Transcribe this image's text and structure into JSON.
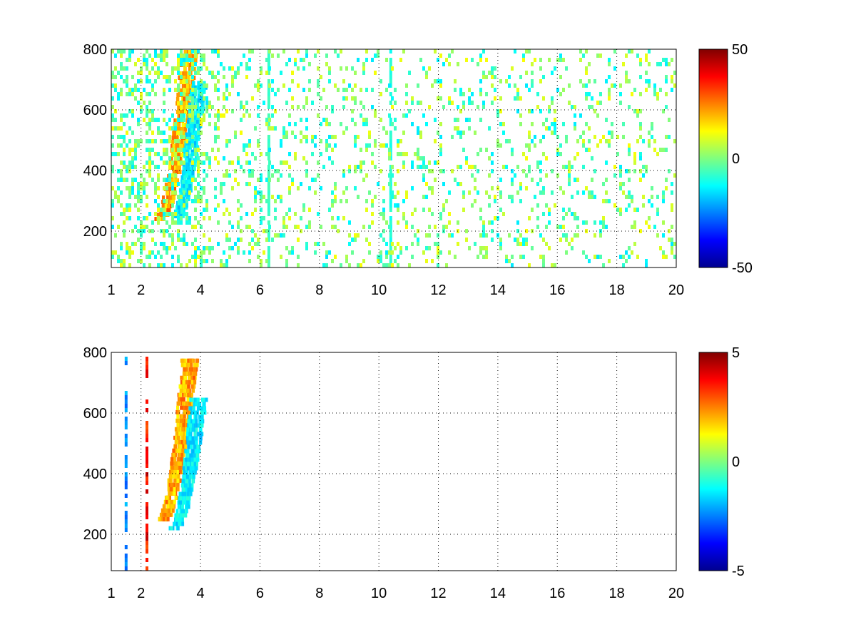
{
  "chart_data": [
    {
      "type": "heatmap",
      "title": "",
      "xlabel": "",
      "ylabel": "",
      "x_ticks": [
        1,
        2,
        4,
        6,
        8,
        10,
        12,
        14,
        16,
        18,
        20
      ],
      "y_ticks": [
        200,
        400,
        600,
        800
      ],
      "xlim": [
        1,
        20
      ],
      "ylim": [
        80,
        800
      ],
      "grid": true,
      "colormap": "jet",
      "colorbar": {
        "min": -50,
        "max": 50,
        "ticks": [
          50,
          0,
          -50
        ]
      },
      "features": [
        {
          "kind": "ridge",
          "x_from": 2.6,
          "x_to": 3.6,
          "y_from": 240,
          "y_to": 800,
          "value": 30
        },
        {
          "kind": "ridge",
          "x_from": 3.2,
          "x_to": 3.9,
          "y_from": 250,
          "y_to": 700,
          "value": -20
        },
        {
          "kind": "stripe",
          "x": 10.4,
          "value": -12
        },
        {
          "kind": "stripe",
          "x": 6.3,
          "value": -8
        },
        {
          "kind": "scatter_noise",
          "x_from": 1,
          "x_to": 20,
          "value_range": [
            -15,
            12
          ]
        }
      ]
    },
    {
      "type": "heatmap",
      "title": "",
      "xlabel": "",
      "ylabel": "",
      "x_ticks": [
        1,
        2,
        4,
        6,
        8,
        10,
        12,
        14,
        16,
        18,
        20
      ],
      "y_ticks": [
        200,
        400,
        600,
        800
      ],
      "xlim": [
        1,
        20
      ],
      "ylim": [
        80,
        800
      ],
      "grid": true,
      "colormap": "jet",
      "colorbar": {
        "min": -5,
        "max": 5,
        "ticks": [
          5,
          0,
          -5
        ]
      },
      "features": [
        {
          "kind": "ridge",
          "x_from": 2.7,
          "x_to": 3.6,
          "y_from": 250,
          "y_to": 780,
          "value": 3
        },
        {
          "kind": "ridge",
          "x_from": 3.1,
          "x_to": 3.9,
          "y_from": 220,
          "y_to": 650,
          "value": -2
        },
        {
          "kind": "stripe",
          "x": 2.2,
          "value": 4.5
        },
        {
          "kind": "stripe",
          "x": 1.5,
          "value": -3
        }
      ]
    }
  ]
}
